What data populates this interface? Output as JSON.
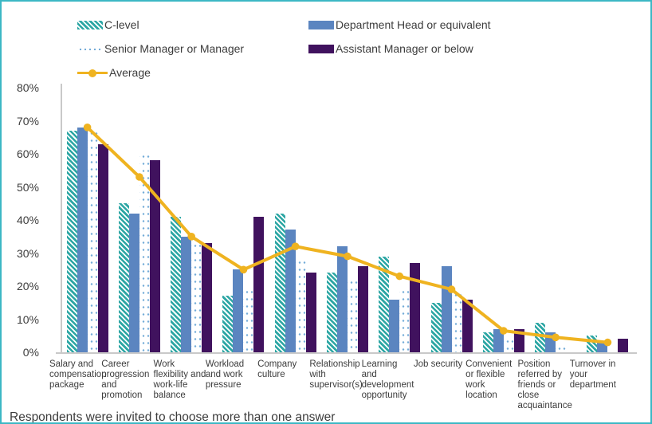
{
  "frame": {
    "border_color": "#3bb7c4",
    "background": "#ffffff"
  },
  "legend": {
    "items": [
      {
        "label": "C-level",
        "swatch": "hatched",
        "color": "#2ca6a4"
      },
      {
        "label": "Department Head or equivalent",
        "swatch": "solid",
        "color": "#5b85c0"
      },
      {
        "label": "Senior Manager or Manager",
        "swatch": "dotted",
        "color": "#74acd8"
      },
      {
        "label": "Assistant Manager or below",
        "swatch": "solid",
        "color": "#40125e"
      },
      {
        "label": "Average",
        "swatch": "line",
        "color": "#efb320"
      }
    ]
  },
  "chart_data": {
    "type": "bar",
    "subtype": "grouped bars with average line overlay",
    "categories": [
      "Salary and compensation package",
      "Career progression and promotion",
      "Work flexibility and work-life balance",
      "Workload and work pressure",
      "Company culture",
      "Relationship with supervisor(s)",
      "Learning and development opportunity",
      "Job security",
      "Convenient or flexible work location",
      "Position referred by friends or close acquaintance",
      "Turnover in your department"
    ],
    "series": [
      {
        "name": "C-level",
        "style": "hatched",
        "color": "#2ca6a4",
        "values": [
          67,
          45,
          41,
          17,
          42,
          24,
          29,
          15,
          6,
          9,
          5
        ]
      },
      {
        "name": "Department Head or equivalent",
        "style": "solid",
        "color": "#5b85c0",
        "values": [
          68,
          42,
          35,
          25,
          37,
          32,
          16,
          26,
          7,
          6,
          3
        ]
      },
      {
        "name": "Senior Manager or Manager",
        "style": "dotted",
        "color": "#74acd8",
        "values": [
          68,
          61,
          34,
          20,
          29,
          23,
          20,
          19,
          5,
          3,
          1
        ]
      },
      {
        "name": "Assistant Manager or below",
        "style": "solid",
        "color": "#40125e",
        "values": [
          63,
          58,
          33,
          41,
          24,
          26,
          27,
          16,
          7,
          0,
          4
        ]
      }
    ],
    "line_series": {
      "name": "Average",
      "color": "#efb320",
      "values": [
        68,
        53,
        35,
        25,
        32,
        29,
        23,
        19,
        6.5,
        4.5,
        3
      ]
    },
    "title": "",
    "xlabel": "",
    "ylabel": "",
    "ylim": [
      0,
      80
    ],
    "yticks": [
      "0%",
      "10%",
      "20%",
      "30%",
      "40%",
      "50%",
      "60%",
      "70%",
      "80%"
    ],
    "grid": false,
    "legend_position": "top"
  },
  "footer": {
    "note": "Respondents were invited to choose more than one answer"
  }
}
